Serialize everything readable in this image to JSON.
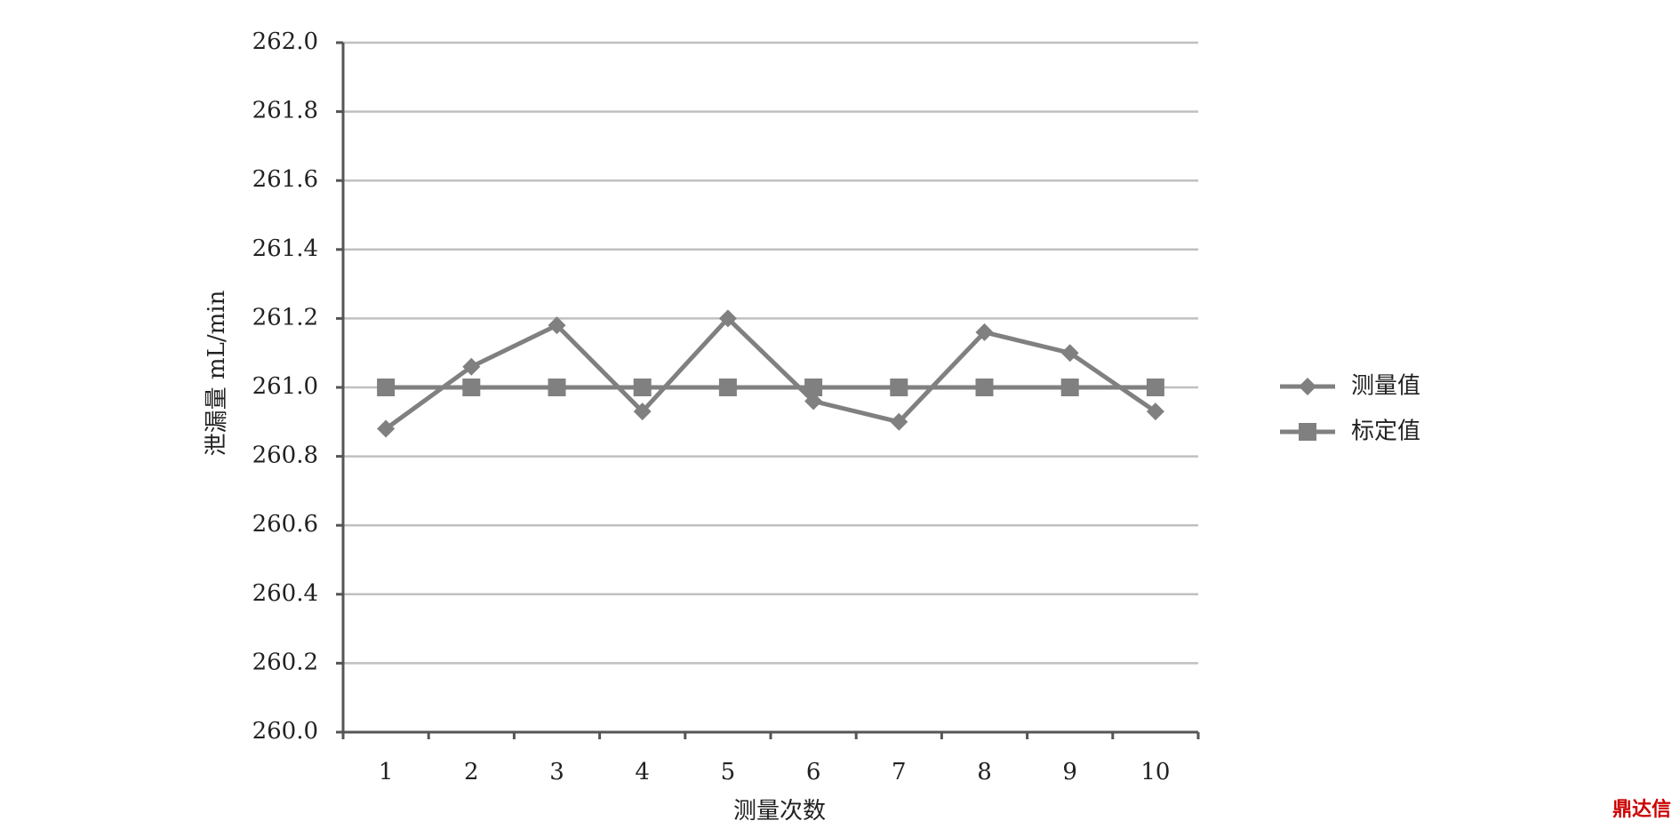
{
  "chart_data": {
    "type": "line",
    "y_label": "泄漏量 mL/min",
    "x_label": "测量次数",
    "categories": [
      "1",
      "2",
      "3",
      "4",
      "5",
      "6",
      "7",
      "8",
      "9",
      "10"
    ],
    "series": [
      {
        "name": "测量值",
        "color": "#808080",
        "marker": "diamond",
        "values": [
          260.88,
          261.06,
          261.18,
          260.93,
          261.2,
          260.96,
          260.9,
          261.16,
          261.1,
          260.93
        ]
      },
      {
        "name": "标定值",
        "color": "#808080",
        "marker": "square",
        "values": [
          261.0,
          261.0,
          261.0,
          261.0,
          261.0,
          261.0,
          261.0,
          261.0,
          261.0,
          261.0
        ]
      }
    ],
    "ylim": [
      260.0,
      262.0
    ],
    "yticks": [
      {
        "value": 260.0,
        "label": "260.0"
      },
      {
        "value": 260.2,
        "label": "260.2"
      },
      {
        "value": 260.4,
        "label": "260.4"
      },
      {
        "value": 260.6,
        "label": "260.6"
      },
      {
        "value": 260.8,
        "label": "260.8"
      },
      {
        "value": 261.0,
        "label": "261.0"
      },
      {
        "value": 261.2,
        "label": "261.2"
      },
      {
        "value": 261.4,
        "label": "261.4"
      },
      {
        "value": 261.6,
        "label": "261.6"
      },
      {
        "value": 261.8,
        "label": "261.8"
      },
      {
        "value": 262.0,
        "label": "262.0"
      }
    ],
    "grid": true,
    "legend": "right",
    "watermark": "鼎达信"
  }
}
